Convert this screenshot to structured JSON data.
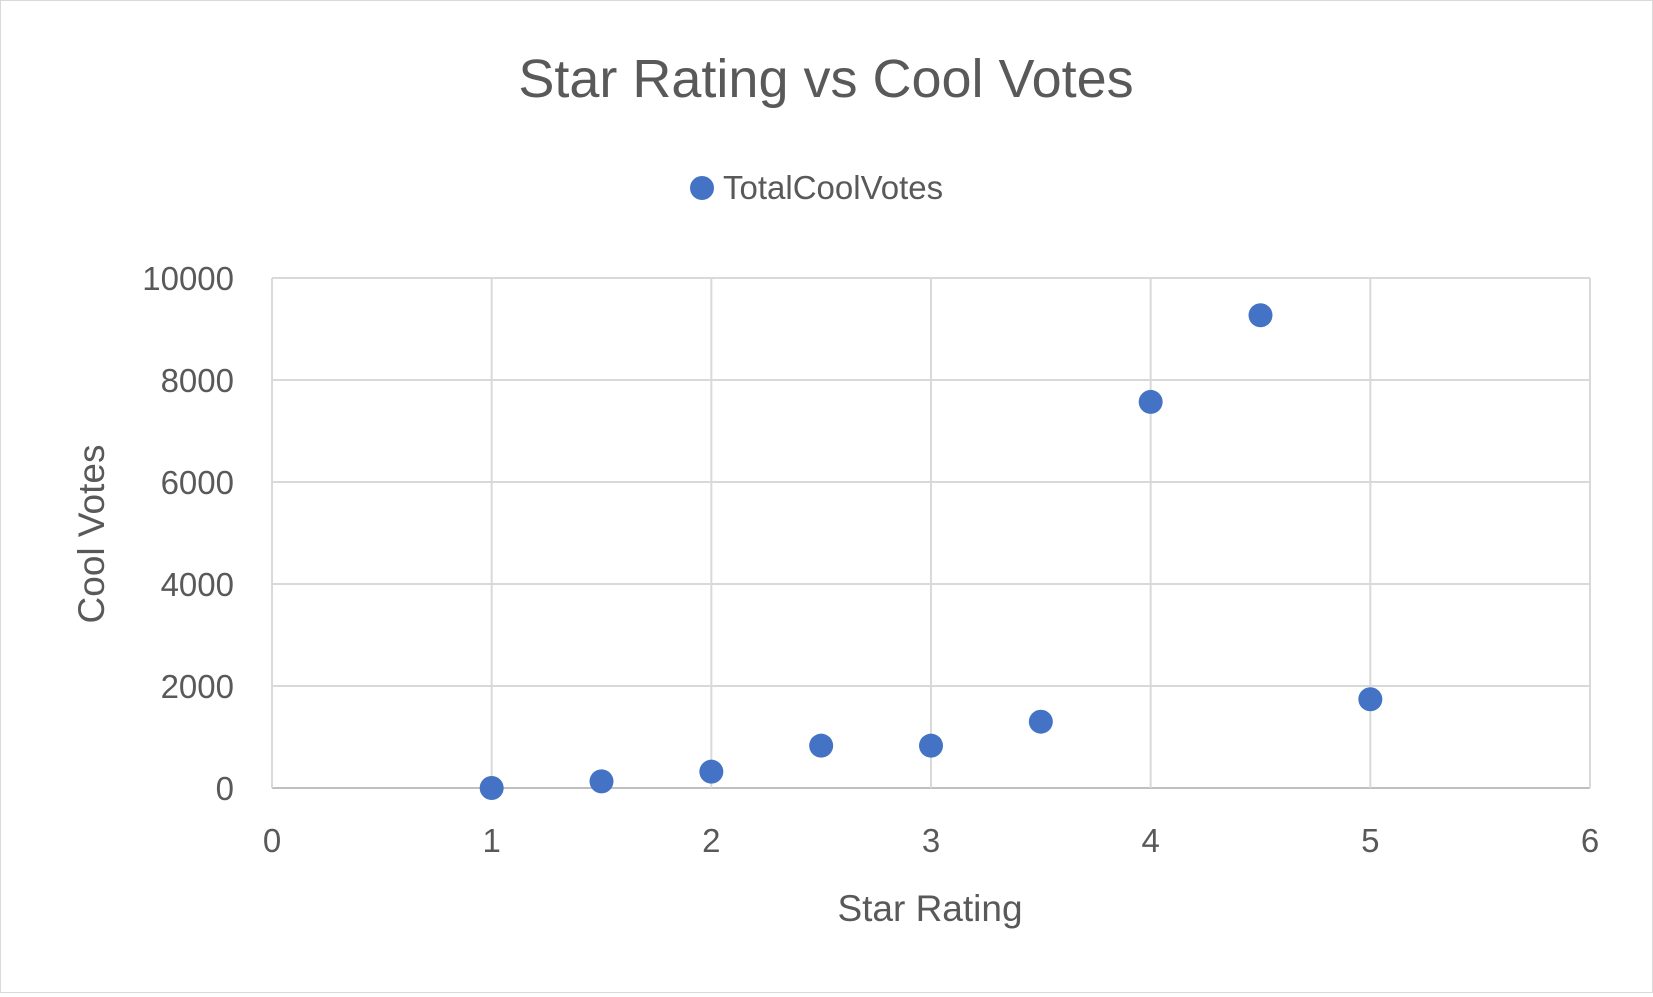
{
  "chart_data": {
    "type": "scatter",
    "title": "Star Rating vs Cool Votes",
    "xlabel": "Star Rating",
    "ylabel": "Cool Votes",
    "xlim": [
      0,
      6
    ],
    "ylim": [
      0,
      10000
    ],
    "xticks": [
      0,
      1,
      2,
      3,
      4,
      5,
      6
    ],
    "yticks": [
      0,
      2000,
      4000,
      6000,
      8000,
      10000
    ],
    "grid": true,
    "legend_position": "top",
    "series": [
      {
        "name": "TotalCoolVotes",
        "color": "#4472c4",
        "points": [
          {
            "x": 1,
            "y": 0
          },
          {
            "x": 1.5,
            "y": 130
          },
          {
            "x": 2,
            "y": 320
          },
          {
            "x": 2.5,
            "y": 830
          },
          {
            "x": 3,
            "y": 830
          },
          {
            "x": 3.5,
            "y": 1300
          },
          {
            "x": 4,
            "y": 7570
          },
          {
            "x": 4.5,
            "y": 9270
          },
          {
            "x": 5,
            "y": 1740
          }
        ]
      }
    ]
  }
}
